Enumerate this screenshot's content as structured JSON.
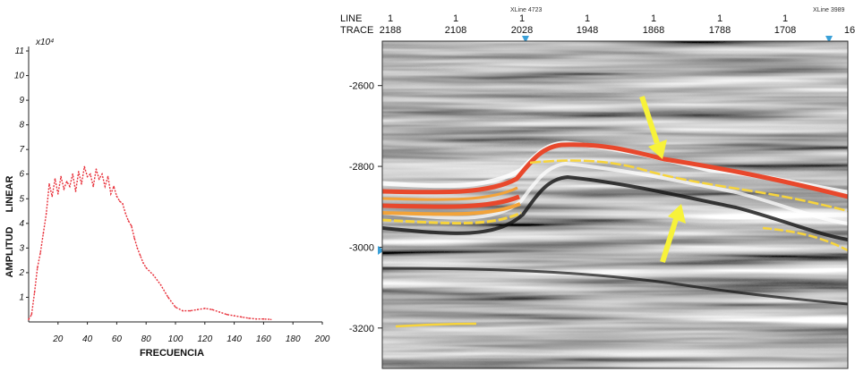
{
  "chart_data": [
    {
      "type": "line",
      "multiplier_label": "x10⁴",
      "ylabel_top": "LINEAR",
      "ylabel_bottom": "AMPLITUD",
      "xlabel": "FRECUENCIA",
      "xlim": [
        0,
        200
      ],
      "ylim": [
        0,
        11
      ],
      "xticks": [
        "20",
        "40",
        "60",
        "80",
        "100",
        "120",
        "140",
        "160",
        "180",
        "200"
      ],
      "yticks": [
        "1",
        "2",
        "3",
        "4",
        "5",
        "6",
        "7",
        "8",
        "9",
        "10",
        "11"
      ],
      "line_color": "#e8303a",
      "line_style": "dotted",
      "x": [
        0,
        2,
        4,
        6,
        8,
        10,
        12,
        14,
        16,
        18,
        20,
        22,
        24,
        26,
        28,
        30,
        32,
        34,
        36,
        38,
        40,
        42,
        44,
        46,
        48,
        50,
        52,
        54,
        56,
        58,
        60,
        62,
        64,
        66,
        68,
        70,
        72,
        74,
        76,
        78,
        80,
        85,
        90,
        95,
        100,
        105,
        110,
        115,
        120,
        125,
        130,
        135,
        140,
        145,
        150,
        155,
        160,
        165
      ],
      "y": [
        0.1,
        0.3,
        1.2,
        2.2,
        2.8,
        3.6,
        4.4,
        5.6,
        5.1,
        5.8,
        5.2,
        5.9,
        5.4,
        5.7,
        5.5,
        6.0,
        5.3,
        6.1,
        5.6,
        6.3,
        5.9,
        6.0,
        5.5,
        6.2,
        5.8,
        6.0,
        5.5,
        5.9,
        5.2,
        5.5,
        5.1,
        4.9,
        4.8,
        4.4,
        4.1,
        3.9,
        3.4,
        3.0,
        2.7,
        2.4,
        2.2,
        1.9,
        1.5,
        1.0,
        0.6,
        0.45,
        0.45,
        0.5,
        0.55,
        0.5,
        0.4,
        0.3,
        0.25,
        0.2,
        0.15,
        0.12,
        0.12,
        0.1
      ]
    },
    {
      "type": "image",
      "header": {
        "line_label": "LINE",
        "trace_label": "TRACE",
        "line_values": [
          "1",
          "1",
          "1",
          "1",
          "1",
          "1",
          "1"
        ],
        "trace_values": [
          "2188",
          "2108",
          "2028",
          "1948",
          "1868",
          "1788",
          "1708",
          "16"
        ],
        "xline_labels": [
          "XLine 4723",
          "XLine 3989"
        ]
      },
      "depth_ticks": [
        "-2600",
        "-2800",
        "-3000",
        "-3200"
      ],
      "depth_range": [
        -2490,
        -3300
      ],
      "horizon_colors": [
        "#e8482c",
        "#f2a33a",
        "#f7d43c"
      ],
      "arrow_color": "#f7f23a"
    }
  ]
}
